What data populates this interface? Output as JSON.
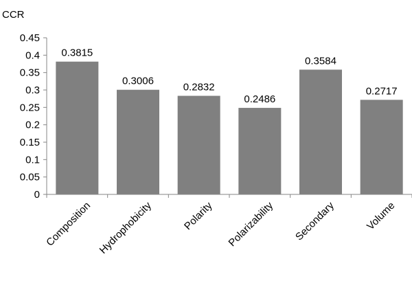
{
  "chart_data": {
    "type": "bar",
    "title": "",
    "xlabel": "",
    "ylabel": "CCR",
    "categories": [
      "Composition",
      "Hydrophobicity",
      "Polarity",
      "Polarizability",
      "Secondary",
      "Volume"
    ],
    "values": [
      0.3815,
      0.3006,
      0.2832,
      0.2486,
      0.3584,
      0.2717
    ],
    "data_labels": [
      "0.3815",
      "0.3006",
      "0.2832",
      "0.2486",
      "0.3584",
      "0.2717"
    ],
    "ylim": [
      0,
      0.45
    ],
    "yticks": [
      "0",
      "0.05",
      "0.1",
      "0.15",
      "0.2",
      "0.25",
      "0.3",
      "0.35",
      "0.4",
      "0.45"
    ],
    "grid": false,
    "legend": "none",
    "bar_color": "#808080",
    "axis_color": "#868686"
  }
}
